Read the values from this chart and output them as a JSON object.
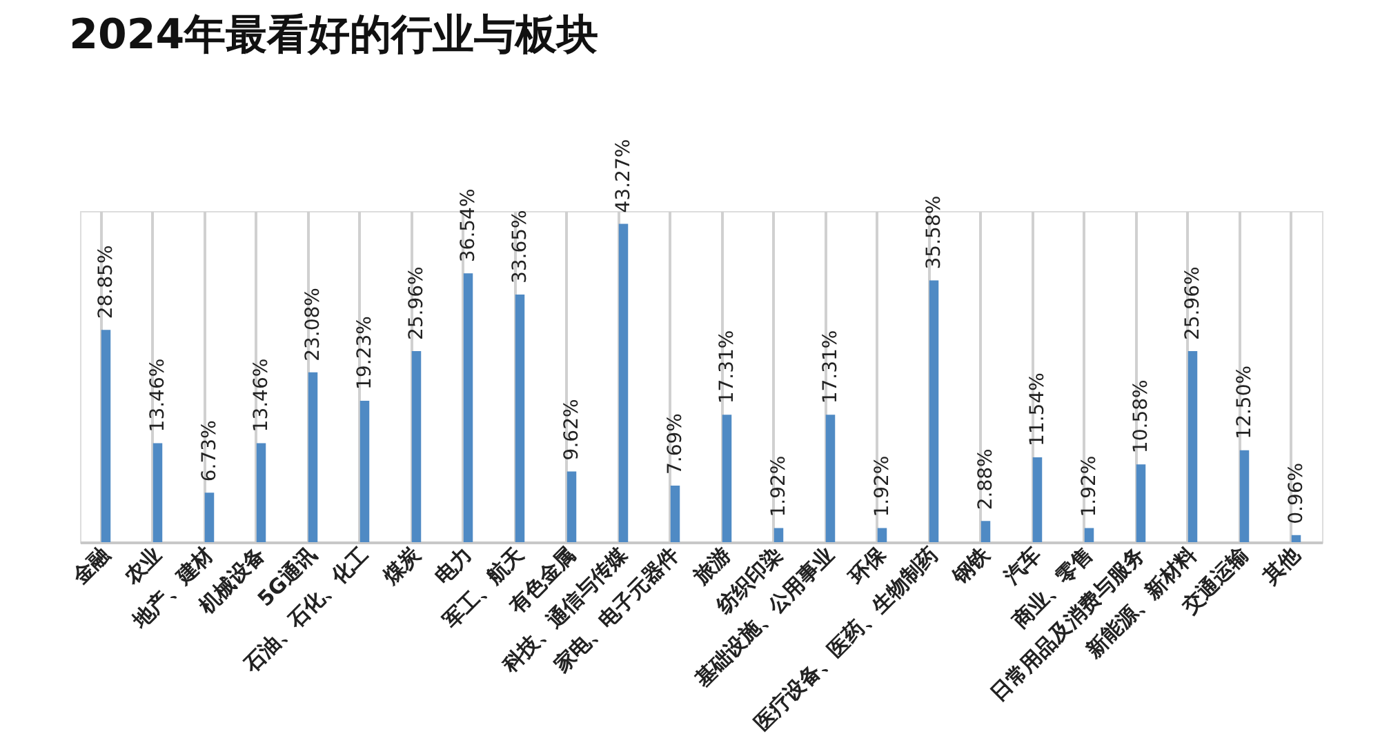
{
  "chart_data": {
    "type": "bar",
    "title": "2024年最看好的行业与板块",
    "categories": [
      "金融",
      "农业",
      "地产、建材",
      "机械设备",
      "5G通讯",
      "石油、石化、化工",
      "煤炭",
      "电力",
      "军工、航天",
      "有色金属",
      "科技、通信与传媒",
      "家电、电子元器件",
      "旅游",
      "纺织印染",
      "基础设施、公用事业",
      "环保",
      "医疗设备、医药、生物制药",
      "钢铁",
      "汽车",
      "商业、零售",
      "日常用品及消费与服务",
      "新能源、新材料",
      "交通运输",
      "其他"
    ],
    "values": [
      28.85,
      13.46,
      6.73,
      13.46,
      23.08,
      19.23,
      25.96,
      36.54,
      33.65,
      9.62,
      43.27,
      7.69,
      17.31,
      1.92,
      17.31,
      1.92,
      35.58,
      2.88,
      11.54,
      1.92,
      10.58,
      25.96,
      12.5,
      0.96
    ],
    "value_labels": [
      "28.85%",
      "13.46%",
      "6.73%",
      "13.46%",
      "23.08%",
      "19.23%",
      "25.96%",
      "36.54%",
      "33.65%",
      "9.62%",
      "43.27%",
      "7.69%",
      "17.31%",
      "1.92%",
      "17.31%",
      "1.92%",
      "35.58%",
      "2.88%",
      "11.54%",
      "1.92%",
      "10.58%",
      "25.96%",
      "12.50%",
      "0.96%"
    ],
    "color": "#4f8ac4",
    "grid": "x"
  }
}
